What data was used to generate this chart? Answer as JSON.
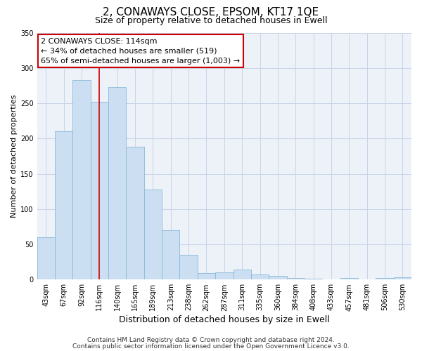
{
  "title": "2, CONAWAYS CLOSE, EPSOM, KT17 1QE",
  "subtitle": "Size of property relative to detached houses in Ewell",
  "xlabel": "Distribution of detached houses by size in Ewell",
  "ylabel": "Number of detached properties",
  "categories": [
    "43sqm",
    "67sqm",
    "92sqm",
    "116sqm",
    "140sqm",
    "165sqm",
    "189sqm",
    "213sqm",
    "238sqm",
    "262sqm",
    "287sqm",
    "311sqm",
    "335sqm",
    "360sqm",
    "384sqm",
    "408sqm",
    "433sqm",
    "457sqm",
    "481sqm",
    "506sqm",
    "530sqm"
  ],
  "values": [
    60,
    210,
    283,
    252,
    273,
    188,
    128,
    70,
    35,
    9,
    10,
    14,
    7,
    5,
    2,
    1,
    0,
    2,
    0,
    2,
    3
  ],
  "bar_color": "#ccdff2",
  "bar_edge_color": "#89b8d8",
  "vline_x_index": 3,
  "vline_color": "#cc0000",
  "ylim": [
    0,
    350
  ],
  "yticks": [
    0,
    50,
    100,
    150,
    200,
    250,
    300,
    350
  ],
  "annotation_title": "2 CONAWAYS CLOSE: 114sqm",
  "annotation_line1": "← 34% of detached houses are smaller (519)",
  "annotation_line2": "65% of semi-detached houses are larger (1,003) →",
  "annotation_box_color": "#ffffff",
  "annotation_border_color": "#cc0000",
  "footer_line1": "Contains HM Land Registry data © Crown copyright and database right 2024.",
  "footer_line2": "Contains public sector information licensed under the Open Government Licence v3.0.",
  "background_color": "#ffffff",
  "plot_bg_color": "#edf2f9",
  "grid_color": "#c8d4e8",
  "title_fontsize": 11,
  "subtitle_fontsize": 9,
  "xlabel_fontsize": 9,
  "ylabel_fontsize": 8,
  "tick_fontsize": 7,
  "annotation_fontsize": 8,
  "footer_fontsize": 6.5
}
